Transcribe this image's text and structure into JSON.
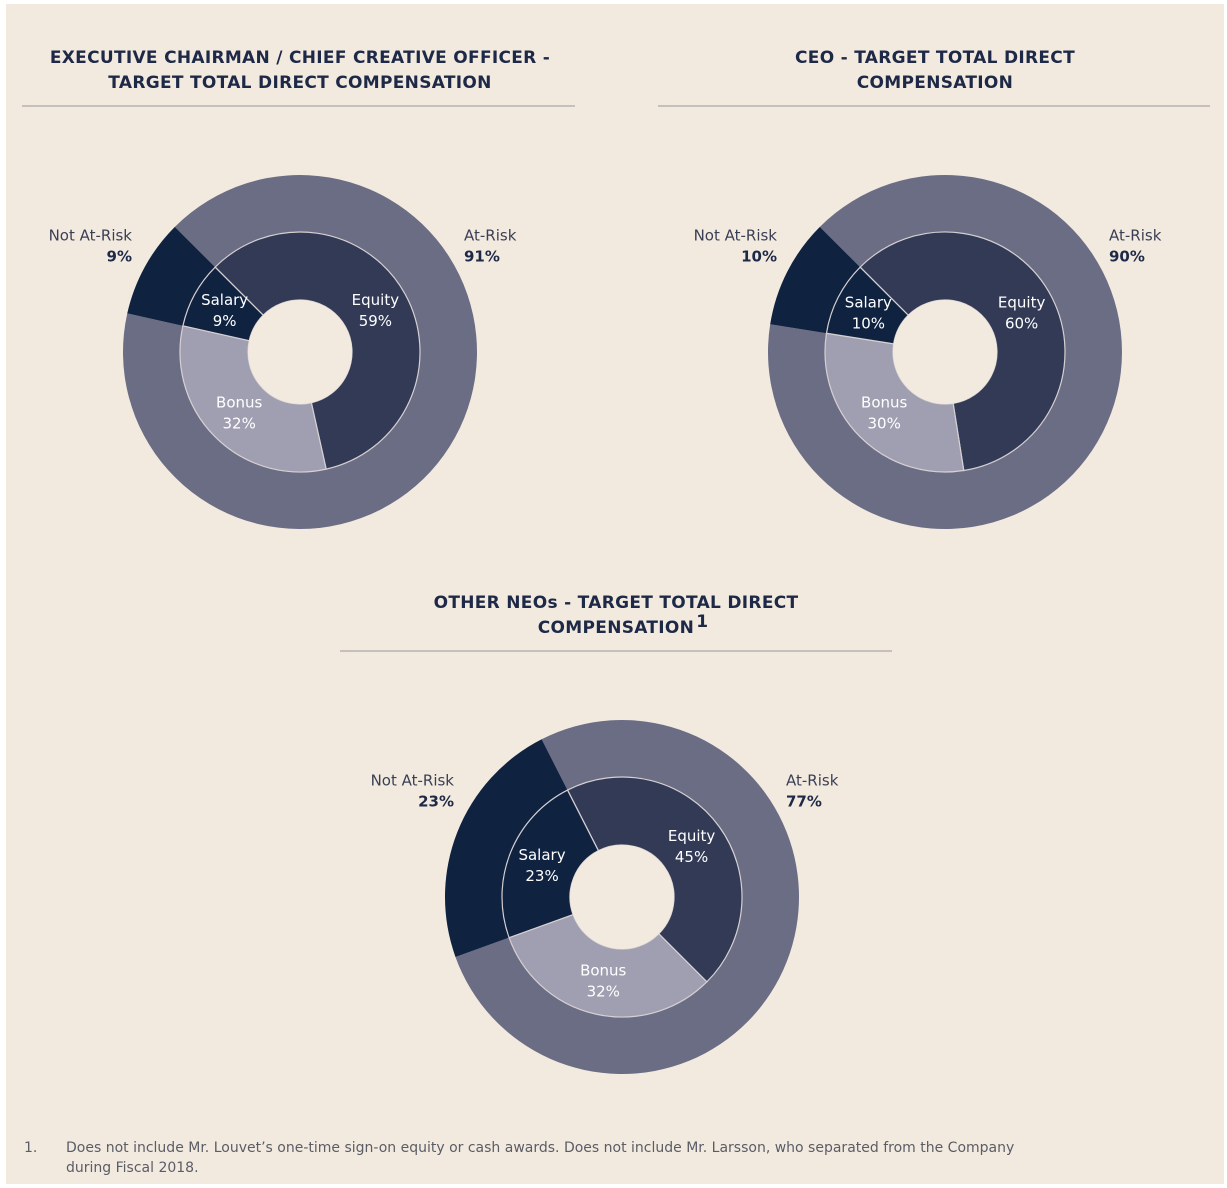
{
  "chart_data": [
    {
      "type": "donut",
      "title": [
        "EXECUTIVE CHAIRMAN / CHIEF CREATIVE OFFICER -",
        "TARGET TOTAL DIRECT COMPENSATION"
      ],
      "outer": {
        "categories": [
          "Not At-Risk",
          "At-Risk"
        ],
        "values": [
          9,
          91
        ],
        "value_labels": [
          "9%",
          "91%"
        ],
        "colors": [
          "#0f2240",
          "#6b6d85"
        ]
      },
      "inner": {
        "categories": [
          "Salary",
          "Bonus",
          "Equity"
        ],
        "values": [
          9,
          32,
          59
        ],
        "value_labels": [
          "9%",
          "32%",
          "59%"
        ],
        "colors": [
          "#0f2240",
          "#a09fb2",
          "#323a56"
        ]
      }
    },
    {
      "type": "donut",
      "title": [
        "CEO - TARGET TOTAL DIRECT",
        "COMPENSATION"
      ],
      "outer": {
        "categories": [
          "Not At-Risk",
          "At-Risk"
        ],
        "values": [
          10,
          90
        ],
        "value_labels": [
          "10%",
          "90%"
        ],
        "colors": [
          "#0f2240",
          "#6b6d85"
        ]
      },
      "inner": {
        "categories": [
          "Salary",
          "Bonus",
          "Equity"
        ],
        "values": [
          10,
          30,
          60
        ],
        "value_labels": [
          "10%",
          "30%",
          "60%"
        ],
        "colors": [
          "#0f2240",
          "#a09fb2",
          "#323a56"
        ]
      }
    },
    {
      "type": "donut",
      "title": [
        "OTHER NEOs - TARGET TOTAL DIRECT",
        "COMPENSATION"
      ],
      "title_note": "1",
      "outer": {
        "categories": [
          "Not At-Risk",
          "At-Risk"
        ],
        "values": [
          23,
          77
        ],
        "value_labels": [
          "23%",
          "77%"
        ],
        "colors": [
          "#0f2240",
          "#6b6d85"
        ]
      },
      "inner": {
        "categories": [
          "Salary",
          "Bonus",
          "Equity"
        ],
        "values": [
          23,
          32,
          45
        ],
        "value_labels": [
          "23%",
          "32%",
          "45%"
        ],
        "colors": [
          "#0f2240",
          "#a09fb2",
          "#323a56"
        ]
      }
    }
  ],
  "footnote": {
    "marker": "1.",
    "lines": [
      "Does not include Mr. Louvet’s one-time sign-on equity or cash awards. Does not include Mr. Larsson, who separated from the Company",
      "during Fiscal 2018."
    ]
  }
}
